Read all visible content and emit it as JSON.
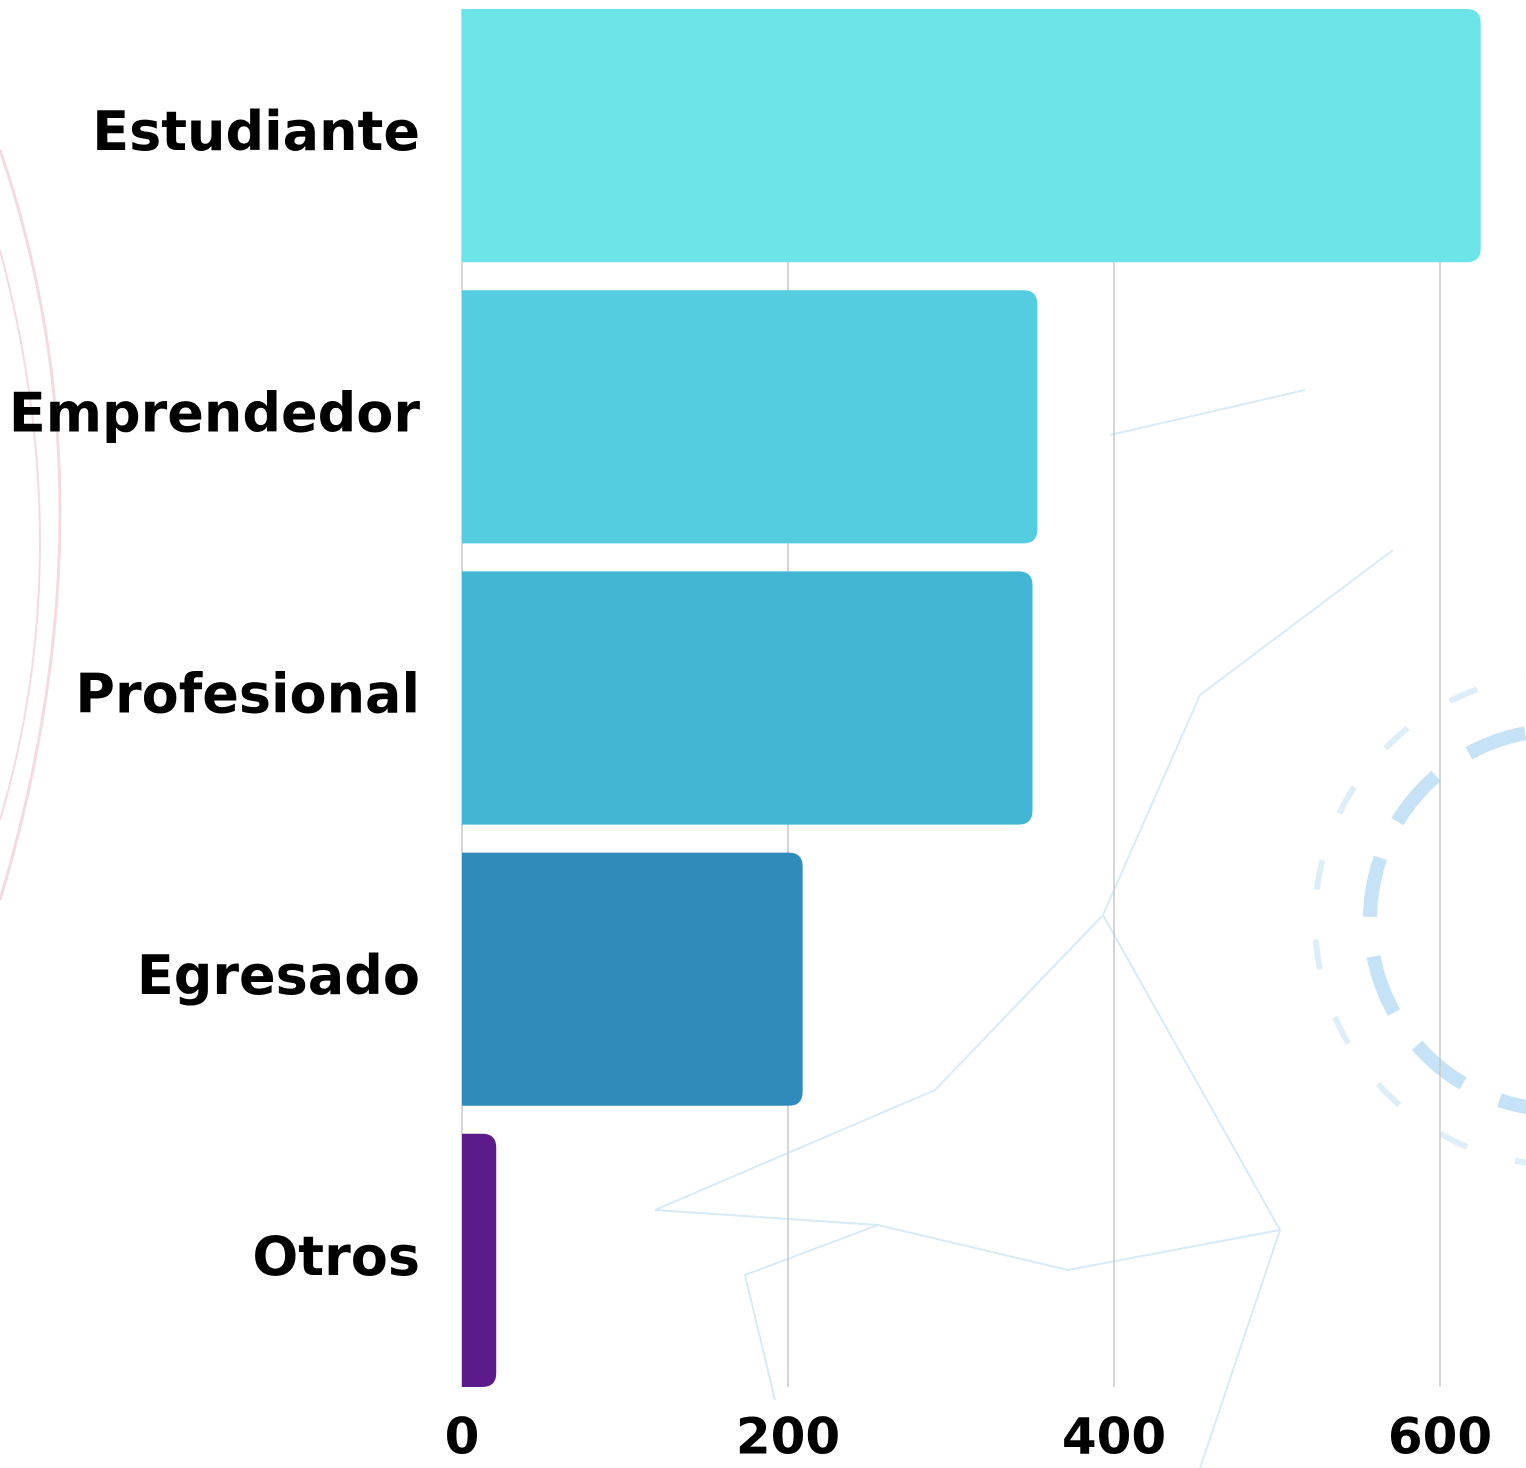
{
  "chart_data": {
    "type": "bar",
    "orientation": "horizontal",
    "categories": [
      "Estudiante",
      "Emprendedor",
      "Profesional",
      "Egresado",
      "Otros"
    ],
    "values": [
      625,
      353,
      350,
      209,
      21
    ],
    "colors": [
      "#6ce5e8",
      "#54cde0",
      "#41b6d5",
      "#2e8bba",
      "#5c1a8a"
    ],
    "xlim": [
      0,
      650
    ],
    "xticks": [
      0,
      200,
      400,
      600
    ],
    "grid": true
  }
}
